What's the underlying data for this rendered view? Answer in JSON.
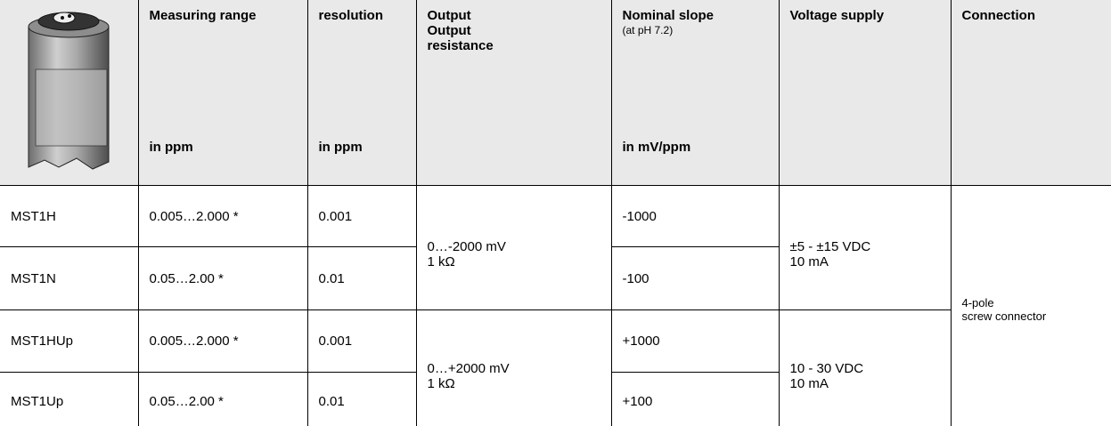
{
  "header": {
    "columns": [
      {
        "title": "Measuring range",
        "unit": "in ppm"
      },
      {
        "title": "resolution",
        "unit": "in ppm"
      },
      {
        "title": [
          "Output",
          "Output resistance"
        ]
      },
      {
        "title": "Nominal slope",
        "note": "(at pH 7.2)",
        "unit": "in mV/ppm"
      },
      {
        "title": "Voltage supply"
      },
      {
        "title": "Connection"
      }
    ]
  },
  "table": {
    "rows": [
      {
        "name": "MST1H",
        "range": "0.005…2.000 *",
        "resolution": "0.001",
        "slope": "-1000"
      },
      {
        "name": "MST1N",
        "range": "0.05…2.00 *",
        "resolution": "0.01",
        "slope": "-100"
      },
      {
        "name": "MST1HUp",
        "range": "0.005…2.000 *",
        "resolution": "0.001",
        "slope": "+1000"
      },
      {
        "name": "MST1Up",
        "range": "0.05…2.00 *",
        "resolution": "0.01",
        "slope": "+100"
      }
    ],
    "output": [
      [
        "0…-2000 mV",
        "1 kΩ"
      ],
      [
        "0…+2000 mV",
        "1 kΩ"
      ]
    ],
    "voltage": [
      [
        "±5 - ±15 VDC",
        "10 mA"
      ],
      [
        "10 - 30 VDC",
        "10 mA"
      ]
    ],
    "connection": [
      "4-pole",
      "screw connector"
    ]
  }
}
